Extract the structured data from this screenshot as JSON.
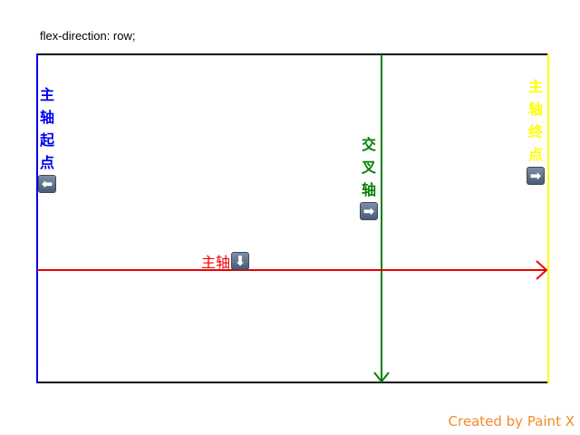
{
  "caption": "flex-direction: row;",
  "main_start": {
    "chars": [
      "主",
      "轴",
      "起",
      "点"
    ],
    "arrow": "⬅",
    "arrow_icon": "left-arrow-icon",
    "color": "#0000ee"
  },
  "main_end": {
    "chars": [
      "主",
      "轴",
      "终",
      "点"
    ],
    "arrow": "➡",
    "arrow_icon": "right-arrow-icon",
    "color": "#ffff00"
  },
  "cross_axis": {
    "chars": [
      "交",
      "叉",
      "轴"
    ],
    "arrow": "➡",
    "arrow_icon": "right-arrow-icon",
    "color": "#008000"
  },
  "main_axis": {
    "label": "主轴",
    "arrow": "⬇",
    "arrow_icon": "down-arrow-icon",
    "color": "#ee0000"
  },
  "credit": {
    "text": "Created by Paint X",
    "color": "#f28c28"
  }
}
